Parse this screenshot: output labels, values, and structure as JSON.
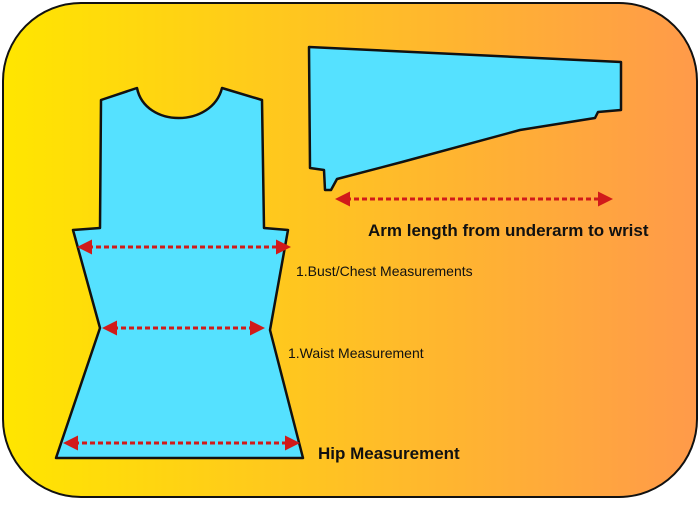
{
  "labels": {
    "arm": "Arm length from underarm to wrist",
    "bust": "1.Bust/Chest Measurements",
    "waist": "1.Waist Measurement",
    "hip": "Hip Measurement"
  },
  "colors": {
    "gradient_start": "#ffe600",
    "gradient_end": "#ff9a4a",
    "pattern_fill": "#55e1ff",
    "outline": "#111111",
    "arrow": "#d11a1a"
  }
}
